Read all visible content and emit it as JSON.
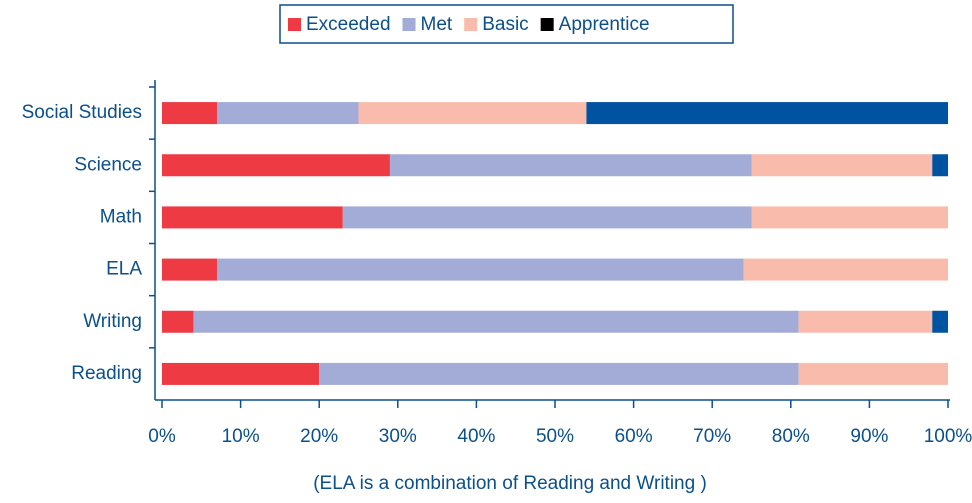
{
  "chart_data": {
    "type": "stacked-bar-horizontal",
    "categories": [
      "Social Studies",
      "Science",
      "Math",
      "ELA",
      "Writing",
      "Reading"
    ],
    "series": [
      {
        "name": "Exceeded",
        "color": "#ee3a43",
        "values": [
          7,
          29,
          23,
          7,
          4,
          20
        ]
      },
      {
        "name": "Met",
        "color": "#a2acd6",
        "values": [
          18,
          46,
          52,
          67,
          77,
          61
        ]
      },
      {
        "name": "Basic",
        "color": "#f9bcac",
        "values": [
          29,
          23,
          25,
          26,
          17,
          19
        ]
      },
      {
        "name": "Apprentice",
        "color": "#0053a0",
        "legend_color": "#000000",
        "values": [
          46,
          2,
          0,
          0,
          2,
          0
        ]
      }
    ],
    "xlim": [
      0,
      100
    ],
    "xticks": [
      {
        "value": 0,
        "label": "0%"
      },
      {
        "value": 10,
        "label": "10%"
      },
      {
        "value": 20,
        "label": "20%"
      },
      {
        "value": 30,
        "label": "30%"
      },
      {
        "value": 40,
        "label": "40%"
      },
      {
        "value": 50,
        "label": "50%"
      },
      {
        "value": 60,
        "label": "60%"
      },
      {
        "value": 70,
        "label": "70%"
      },
      {
        "value": 80,
        "label": "80%"
      },
      {
        "value": 90,
        "label": "90%"
      },
      {
        "value": 100,
        "label": "100%"
      }
    ],
    "note": "(ELA is a combination of Reading and Writing )",
    "legend": "top"
  }
}
